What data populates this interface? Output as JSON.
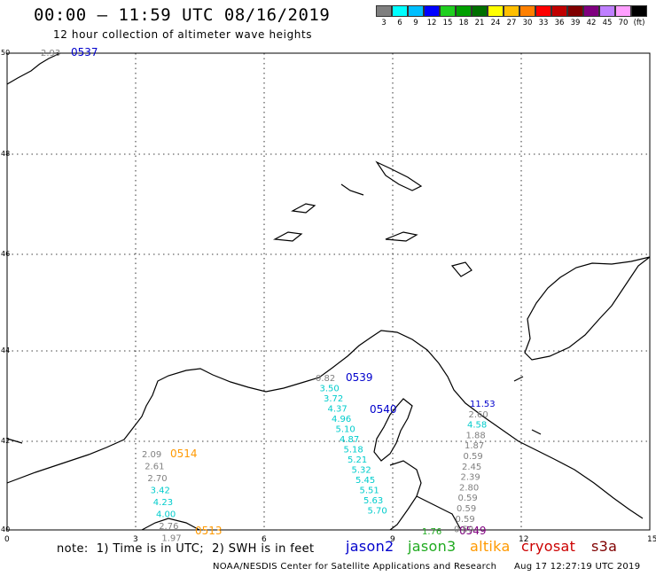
{
  "title": "00:00 – 11:59 UTC 08/16/2019",
  "subtitle": "12 hour collection of altimeter wave heights",
  "colorbar": {
    "colors": [
      "#7f7f7f",
      "#00ffff",
      "#00bfff",
      "#0000ff",
      "#1fcf1f",
      "#00a000",
      "#007000",
      "#ffff00",
      "#ffbf00",
      "#ff8000",
      "#ff0000",
      "#c00000",
      "#800000",
      "#7f007f",
      "#bf7fff",
      "#ff9fff",
      "#000000"
    ],
    "labels": [
      "3",
      "6",
      "9",
      "12",
      "15",
      "18",
      "21",
      "24",
      "27",
      "30",
      "33",
      "36",
      "39",
      "42",
      "45",
      "70",
      "(ft)"
    ]
  },
  "axes": {
    "lon_labels": [
      "0",
      "3",
      "6",
      "9",
      "12",
      "15"
    ],
    "lat_labels": [
      "50",
      "48",
      "46",
      "44",
      "42",
      "40"
    ]
  },
  "tracks": [
    {
      "pass_label": "0537",
      "label_color": "#0000cc",
      "points": [
        {
          "swh": "2.93",
          "color": "#808080"
        }
      ]
    },
    {
      "pass_label": "0539",
      "label_color": "#0000cc",
      "points": [
        {
          "swh": "0.82",
          "color": "#808080"
        },
        {
          "swh": "3.50",
          "color": "#00cccc"
        },
        {
          "swh": "3.72",
          "color": "#00cccc"
        },
        {
          "swh": "4.37",
          "color": "#00cccc"
        },
        {
          "swh": "4.96",
          "color": "#00cccc"
        },
        {
          "swh": "5.10",
          "color": "#00cccc"
        },
        {
          "swh": "4.87",
          "color": "#00cccc"
        },
        {
          "swh": "5.18",
          "color": "#00cccc"
        },
        {
          "swh": "5.21",
          "color": "#00cccc"
        },
        {
          "swh": "5.32",
          "color": "#00cccc"
        },
        {
          "swh": "5.45",
          "color": "#00cccc"
        },
        {
          "swh": "5.51",
          "color": "#00cccc"
        },
        {
          "swh": "5.63",
          "color": "#00cccc"
        },
        {
          "swh": "5.70",
          "color": "#00cccc"
        }
      ]
    },
    {
      "pass_label": "0540",
      "label_color": "#0000cc",
      "points": []
    },
    {
      "pass_label": "0514",
      "label_color": "#ff9900",
      "points": [
        {
          "swh": "2.09",
          "color": "#808080"
        },
        {
          "swh": "2.61",
          "color": "#808080"
        },
        {
          "swh": "2.70",
          "color": "#808080"
        },
        {
          "swh": "3.42",
          "color": "#00cccc"
        },
        {
          "swh": "4.23",
          "color": "#00cccc"
        },
        {
          "swh": "4.00",
          "color": "#00cccc"
        },
        {
          "swh": "2.76",
          "color": "#808080"
        },
        {
          "swh": "1.97",
          "color": "#808080"
        }
      ]
    },
    {
      "pass_label": "0513",
      "label_color": "#ff9900",
      "points": []
    },
    {
      "pass_label": "0549",
      "label_color": "#800080",
      "points": [
        {
          "swh": "11.53",
          "color": "#0000cc"
        },
        {
          "swh": "2.60",
          "color": "#808080"
        },
        {
          "swh": "4.58",
          "color": "#00cccc"
        },
        {
          "swh": "1.88",
          "color": "#808080"
        },
        {
          "swh": "1.87",
          "color": "#808080"
        },
        {
          "swh": "0.59",
          "color": "#808080"
        },
        {
          "swh": "2.45",
          "color": "#808080"
        },
        {
          "swh": "2.39",
          "color": "#808080"
        },
        {
          "swh": "2.80",
          "color": "#808080"
        },
        {
          "swh": "0.59",
          "color": "#808080"
        },
        {
          "swh": "0.59",
          "color": "#808080"
        },
        {
          "swh": "0.59",
          "color": "#808080"
        },
        {
          "swh": "0.59",
          "color": "#808080"
        }
      ]
    },
    {
      "pass_label": "",
      "label_color": "#1faa1f",
      "points": [
        {
          "swh": "1.76",
          "color": "#1faa1f"
        }
      ]
    }
  ],
  "note": "note:  1) Time is in UTC;  2) SWH is in feet",
  "legend": [
    {
      "label": "jason2",
      "color": "#0000cc"
    },
    {
      "label": "jason3",
      "color": "#1faa1f"
    },
    {
      "label": "altika",
      "color": "#ff9900"
    },
    {
      "label": "cryosat",
      "color": "#cc0000"
    },
    {
      "label": "s3a",
      "color": "#800000"
    }
  ],
  "credit": "NOAA/NESDIS Center for Satellite Applications and Research",
  "timestamp": "Aug 17 12:27:19 UTC 2019"
}
